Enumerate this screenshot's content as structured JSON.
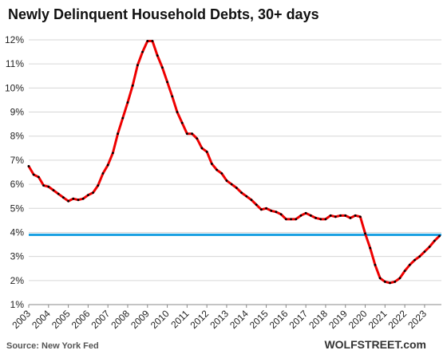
{
  "chart_data": {
    "type": "line",
    "title": "Newly Delinquent Household Debts, 30+ days",
    "source": "Source: New York Fed",
    "brand": "WOLFSTREET.com",
    "xlabel": "",
    "ylabel": "",
    "y_ticks": [
      "1%",
      "2%",
      "3%",
      "4%",
      "5%",
      "6%",
      "7%",
      "8%",
      "9%",
      "10%",
      "11%",
      "12%"
    ],
    "ylim": [
      1,
      12
    ],
    "x_ticks": [
      "2003",
      "2004",
      "2005",
      "2006",
      "2007",
      "2008",
      "2009",
      "2010",
      "2011",
      "2012",
      "2013",
      "2014",
      "2015",
      "2016",
      "2017",
      "2018",
      "2019",
      "2020",
      "2021",
      "2022",
      "2023"
    ],
    "xlim": [
      2003,
      2023.85
    ],
    "grid": true,
    "reference_line": {
      "value": 3.9,
      "color": "#1ba1e2"
    },
    "series": [
      {
        "color": "#ee0000",
        "marker_color": "#000000",
        "x": [
          2003.0,
          2003.25,
          2003.5,
          2003.75,
          2004.0,
          2004.25,
          2004.5,
          2004.75,
          2005.0,
          2005.25,
          2005.5,
          2005.75,
          2006.0,
          2006.25,
          2006.5,
          2006.75,
          2007.0,
          2007.25,
          2007.5,
          2007.75,
          2008.0,
          2008.25,
          2008.5,
          2008.75,
          2009.0,
          2009.25,
          2009.5,
          2009.75,
          2010.0,
          2010.25,
          2010.5,
          2010.75,
          2011.0,
          2011.25,
          2011.5,
          2011.75,
          2012.0,
          2012.25,
          2012.5,
          2012.75,
          2013.0,
          2013.25,
          2013.5,
          2013.75,
          2014.0,
          2014.25,
          2014.5,
          2014.75,
          2015.0,
          2015.25,
          2015.5,
          2015.75,
          2016.0,
          2016.25,
          2016.5,
          2016.75,
          2017.0,
          2017.25,
          2017.5,
          2017.75,
          2018.0,
          2018.25,
          2018.5,
          2018.75,
          2019.0,
          2019.25,
          2019.5,
          2019.75,
          2020.0,
          2020.25,
          2020.5,
          2020.75,
          2021.0,
          2021.25,
          2021.5,
          2021.75,
          2022.0,
          2022.25,
          2022.5,
          2022.75,
          2023.0,
          2023.25,
          2023.5,
          2023.75
        ],
        "values": [
          6.75,
          6.4,
          6.3,
          5.95,
          5.9,
          5.75,
          5.6,
          5.45,
          5.3,
          5.4,
          5.35,
          5.4,
          5.55,
          5.65,
          5.95,
          6.45,
          6.8,
          7.3,
          8.1,
          8.75,
          9.4,
          10.1,
          10.95,
          11.5,
          11.95,
          11.95,
          11.35,
          10.85,
          10.25,
          9.65,
          9.0,
          8.55,
          8.1,
          8.1,
          7.9,
          7.5,
          7.35,
          6.85,
          6.6,
          6.45,
          6.15,
          6.0,
          5.85,
          5.65,
          5.5,
          5.35,
          5.15,
          4.95,
          5.0,
          4.9,
          4.85,
          4.75,
          4.55,
          4.55,
          4.55,
          4.7,
          4.8,
          4.7,
          4.6,
          4.55,
          4.55,
          4.7,
          4.65,
          4.7,
          4.7,
          4.6,
          4.7,
          4.65,
          3.95,
          3.35,
          2.65,
          2.1,
          1.95,
          1.9,
          1.95,
          2.1,
          2.4,
          2.65,
          2.85,
          3.0,
          3.2,
          3.4,
          3.65,
          3.85
        ]
      }
    ]
  }
}
